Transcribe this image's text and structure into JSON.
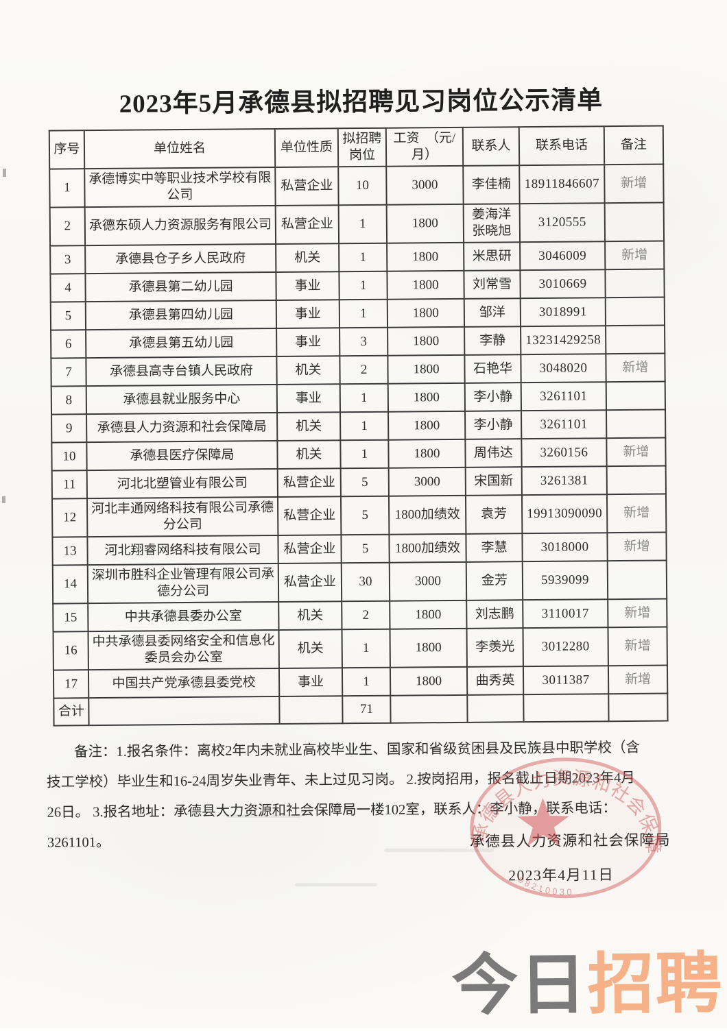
{
  "title": "2023年5月承德县拟招聘见习岗位公示清单",
  "table": {
    "headers": [
      "序号",
      "单位姓名",
      "单位性质",
      "拟招聘岗位",
      "工资　（元/月）",
      "联系人",
      "联系电话",
      "备注"
    ],
    "rows": [
      {
        "no": "1",
        "name": "承德博实中等职业技术学校有限公司",
        "type": "私营企业",
        "positions": "10",
        "salary": "3000",
        "contact": "李佳楠",
        "phone": "18911846607",
        "remark": "新增"
      },
      {
        "no": "2",
        "name": "承德东硕人力资源服务有限公司",
        "type": "私营企业",
        "positions": "1",
        "salary": "1800",
        "contact": "姜海洋\n张晓旭",
        "phone": "3120555",
        "remark": ""
      },
      {
        "no": "3",
        "name": "承德县仓子乡人民政府",
        "type": "机关",
        "positions": "1",
        "salary": "1800",
        "contact": "米思研",
        "phone": "3046009",
        "remark": "新增"
      },
      {
        "no": "4",
        "name": "承德县第二幼儿园",
        "type": "事业",
        "positions": "1",
        "salary": "1800",
        "contact": "刘常雪",
        "phone": "3010669",
        "remark": ""
      },
      {
        "no": "5",
        "name": "承德县第四幼儿园",
        "type": "事业",
        "positions": "1",
        "salary": "1800",
        "contact": "邹洋",
        "phone": "3018991",
        "remark": ""
      },
      {
        "no": "6",
        "name": "承德县第五幼儿园",
        "type": "事业",
        "positions": "3",
        "salary": "1800",
        "contact": "李静",
        "phone": "13231429258",
        "remark": ""
      },
      {
        "no": "7",
        "name": "承德县高寺台镇人民政府",
        "type": "机关",
        "positions": "2",
        "salary": "1800",
        "contact": "石艳华",
        "phone": "3048020",
        "remark": "新增"
      },
      {
        "no": "8",
        "name": "承德县就业服务中心",
        "type": "事业",
        "positions": "1",
        "salary": "1800",
        "contact": "李小静",
        "phone": "3261101",
        "remark": ""
      },
      {
        "no": "9",
        "name": "承德县人力资源和社会保障局",
        "type": "机关",
        "positions": "1",
        "salary": "1800",
        "contact": "李小静",
        "phone": "3261101",
        "remark": ""
      },
      {
        "no": "10",
        "name": "承德县医疗保障局",
        "type": "机关",
        "positions": "1",
        "salary": "1800",
        "contact": "周伟达",
        "phone": "3260156",
        "remark": "新增"
      },
      {
        "no": "11",
        "name": "河北北塑管业有限公司",
        "type": "私营企业",
        "positions": "5",
        "salary": "3000",
        "contact": "宋国新",
        "phone": "3261381",
        "remark": ""
      },
      {
        "no": "12",
        "name": "河北丰通网络科技有限公司承德分公司",
        "type": "私营企业",
        "positions": "5",
        "salary": "1800加绩效",
        "contact": "袁芳",
        "phone": "19913090090",
        "remark": "新增"
      },
      {
        "no": "13",
        "name": "河北翔睿网络科技有限公司",
        "type": "私营企业",
        "positions": "5",
        "salary": "1800加绩效",
        "contact": "李慧",
        "phone": "3018000",
        "remark": "新增"
      },
      {
        "no": "14",
        "name": "深圳市胜科企业管理有限公司承德分公司",
        "type": "私营企业",
        "positions": "30",
        "salary": "3000",
        "contact": "金芳",
        "phone": "5939099",
        "remark": ""
      },
      {
        "no": "15",
        "name": "中共承德县委办公室",
        "type": "机关",
        "positions": "2",
        "salary": "1800",
        "contact": "刘志鹏",
        "phone": "3110017",
        "remark": "新增"
      },
      {
        "no": "16",
        "name": "中共承德县委网络安全和信息化委员会办公室",
        "type": "机关",
        "positions": "1",
        "salary": "1800",
        "contact": "李羡光",
        "phone": "3012280",
        "remark": "新增"
      },
      {
        "no": "17",
        "name": "中国共产党承德县委党校",
        "type": "事业",
        "positions": "1",
        "salary": "1800",
        "contact": "曲秀英",
        "phone": "3011387",
        "remark": "新增"
      }
    ],
    "total_row": {
      "label": "合计",
      "positions": "71"
    }
  },
  "notes": {
    "lines": [
      "备注：1.报名条件：离校2年内未就业高校毕业生、国家和省级贫困县及民族县中职学校（含",
      "技工学校）毕业生和16-24周岁失业青年、未上过见习岗。 2.按岗招用，报名截止日期2023年4月",
      "26日。 3.报名地址：承德县大力资源和社会保障局一楼102室，联系人：李小静，联系电话：",
      "3261101。"
    ]
  },
  "signature": {
    "org": "承德县人力资源和社会保障局",
    "date": "2023年4月11日"
  },
  "stamp": {
    "arc_text": "承德县人力资源和社会保障局",
    "serial": "0 8 2 1 0 0 3 0",
    "color": "#c85a5a"
  },
  "watermark": {
    "part1": "今日",
    "part2": "招聘",
    "color1": "#7a7a7a",
    "color2": "#f6b189"
  }
}
